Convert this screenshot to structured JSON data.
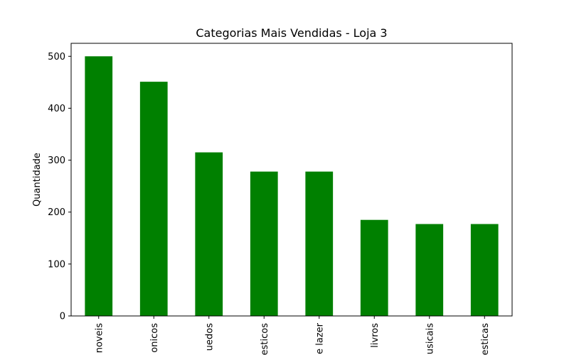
{
  "chart_data": {
    "type": "bar",
    "title": "Categorias Mais Vendidas - Loja 3",
    "xlabel": "",
    "ylabel": "Quantidade",
    "categories": [
      "moveis",
      "eletronicos",
      "brinquedos",
      "eletrodomesticos",
      "esporte e lazer",
      "livros",
      "instrumentos musicais",
      "utilidades domesticas"
    ],
    "category_labels_visible": [
      "noveis",
      "onicos",
      "uedos",
      "esticos",
      "e lazer",
      "livros",
      "usicais",
      "esticas"
    ],
    "values": [
      500,
      451,
      315,
      278,
      278,
      185,
      177,
      177
    ],
    "ylim": [
      0,
      525
    ],
    "yticks": [
      0,
      100,
      200,
      300,
      400,
      500
    ],
    "bar_color": "#008000",
    "grid": false,
    "legend": "none"
  }
}
